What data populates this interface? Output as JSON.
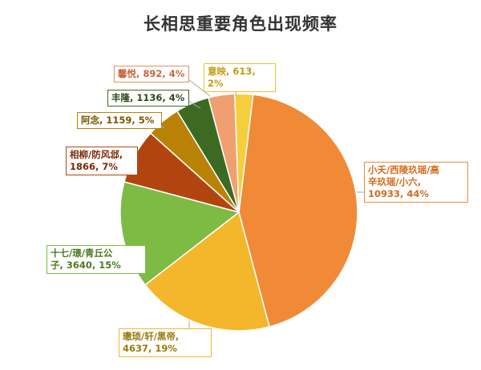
{
  "chart_data": {
    "type": "pie",
    "title": "长相思重要角色出现频率",
    "slices": [
      {
        "name": "小夭/西陵玖瑶/高辛玖瑶/小六",
        "value": 10933,
        "percent": "44%",
        "label": "小夭/西陵玖瑶/高\n辛玖瑶/小六,\n10933, 44%",
        "color": "#f08a37",
        "border": "#f08a37",
        "text_color": "#d26a1a"
      },
      {
        "name": "璷琐/轩/黑帝",
        "value": 4637,
        "percent": "19%",
        "label": "璷琐/轩/黑帝,\n4637, 19%",
        "color": "#f4b62a",
        "border": "#f4b62a",
        "text_color": "#9a7a10"
      },
      {
        "name": "十七/璟/青丘公子",
        "value": 3640,
        "percent": "15%",
        "label": "十七/璟/青丘公\n子, 3640, 15%",
        "color": "#7dbb44",
        "border": "#7dbb44",
        "text_color": "#4c7a22"
      },
      {
        "name": "相柳/防风邶",
        "value": 1866,
        "percent": "7%",
        "label": "相柳/防风邶,\n1866, 7%",
        "color": "#b2450f",
        "border": "#b2450f",
        "text_color": "#7a2a05"
      },
      {
        "name": "阿念",
        "value": 1159,
        "percent": "5%",
        "label": "阿念, 1159, 5%",
        "color": "#b98206",
        "border": "#b98206",
        "text_color": "#7a5504"
      },
      {
        "name": "丰隆",
        "value": 1136,
        "percent": "4%",
        "label": "丰隆, 1136, 4%",
        "color": "#3d6a22",
        "border": "#3d6a22",
        "text_color": "#2c4a18"
      },
      {
        "name": "馨悦",
        "value": 892,
        "percent": "4%",
        "label": "馨悦, 892, 4%",
        "color": "#f0a070",
        "border": "#e8905a",
        "text_color": "#c6663a"
      },
      {
        "name": "意映",
        "value": 613,
        "percent": "2%",
        "label": "意映, 613, 2%",
        "color": "#f6cd3c",
        "border": "#f0c030",
        "text_color": "#c49a10"
      }
    ]
  }
}
